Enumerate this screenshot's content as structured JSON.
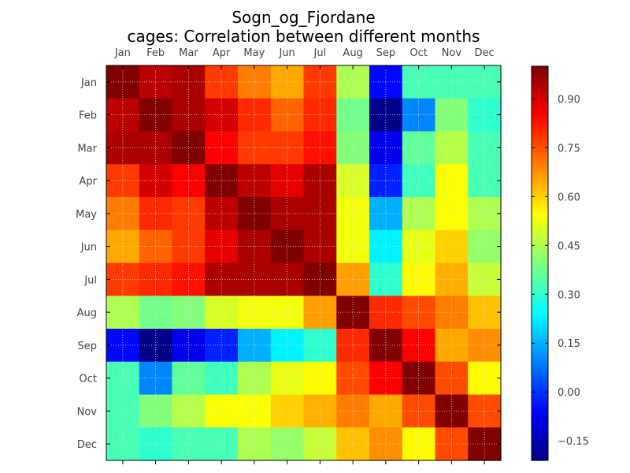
{
  "chart_data": {
    "type": "heatmap",
    "title": "Sogn_og_Fjordane",
    "subtitle": "cages: Correlation between different months",
    "x_labels": [
      "Jan",
      "Feb",
      "Mar",
      "Apr",
      "May",
      "Jun",
      "Jul",
      "Aug",
      "Sep",
      "Oct",
      "Nov",
      "Dec"
    ],
    "y_labels": [
      "Jan",
      "Feb",
      "Mar",
      "Apr",
      "May",
      "Jun",
      "Jul",
      "Aug",
      "Sep",
      "Oct",
      "Nov",
      "Dec"
    ],
    "vmin": -0.21,
    "vmax": 1.0,
    "colormap": "jet",
    "grid": true,
    "colorbar": {
      "ticks": [
        -0.15,
        0.0,
        0.15,
        0.3,
        0.45,
        0.6,
        0.75,
        0.9
      ],
      "tick_labels": [
        "−0.15",
        "0.00",
        "0.15",
        "0.30",
        "0.45",
        "0.60",
        "0.75",
        "0.90"
      ]
    },
    "values": [
      [
        1.0,
        0.93,
        0.95,
        0.78,
        0.7,
        0.65,
        0.78,
        0.45,
        -0.05,
        0.33,
        0.33,
        0.33
      ],
      [
        0.93,
        1.0,
        0.95,
        0.9,
        0.8,
        0.73,
        0.8,
        0.38,
        -0.2,
        0.1,
        0.4,
        0.3
      ],
      [
        0.95,
        0.95,
        1.0,
        0.85,
        0.78,
        0.78,
        0.83,
        0.4,
        -0.08,
        0.36,
        0.46,
        0.33
      ],
      [
        0.78,
        0.9,
        0.85,
        1.0,
        0.93,
        0.88,
        0.95,
        0.5,
        -0.02,
        0.32,
        0.54,
        0.33
      ],
      [
        0.7,
        0.8,
        0.78,
        0.93,
        1.0,
        0.95,
        0.95,
        0.53,
        0.15,
        0.45,
        0.54,
        0.45
      ],
      [
        0.65,
        0.73,
        0.78,
        0.88,
        0.95,
        1.0,
        0.95,
        0.53,
        0.23,
        0.52,
        0.6,
        0.42
      ],
      [
        0.78,
        0.8,
        0.83,
        0.95,
        0.95,
        0.95,
        1.0,
        0.66,
        0.3,
        0.55,
        0.64,
        0.48
      ],
      [
        0.45,
        0.38,
        0.4,
        0.5,
        0.53,
        0.53,
        0.66,
        1.0,
        0.8,
        0.76,
        0.7,
        0.62
      ],
      [
        -0.05,
        -0.2,
        -0.08,
        -0.02,
        0.15,
        0.23,
        0.3,
        0.8,
        1.0,
        0.85,
        0.65,
        0.68
      ],
      [
        0.33,
        0.1,
        0.36,
        0.32,
        0.45,
        0.52,
        0.55,
        0.76,
        0.85,
        1.0,
        0.76,
        0.55
      ],
      [
        0.33,
        0.4,
        0.46,
        0.54,
        0.54,
        0.6,
        0.64,
        0.7,
        0.65,
        0.76,
        1.0,
        0.76
      ],
      [
        0.33,
        0.3,
        0.33,
        0.33,
        0.45,
        0.42,
        0.48,
        0.62,
        0.68,
        0.55,
        0.76,
        1.0
      ]
    ]
  }
}
